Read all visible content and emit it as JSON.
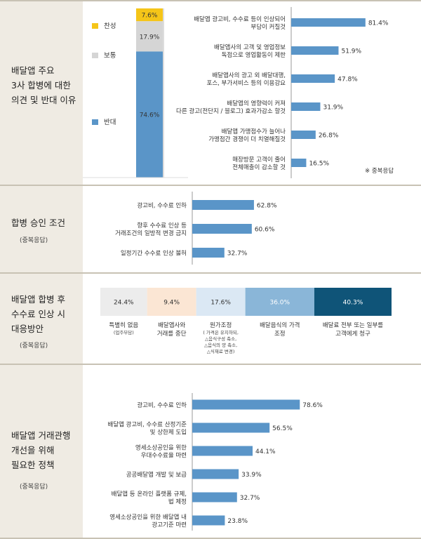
{
  "sections": [
    {
      "title_lines": [
        "배달앱 주요",
        "3사 합병에 대한",
        "의견 및 반대 이유"
      ],
      "sub": ""
    },
    {
      "title_lines": [
        "합병 승인 조건"
      ],
      "sub": "(중복응답)"
    },
    {
      "title_lines": [
        "배달앱 합병 후",
        "수수료 인상 시",
        "대응방안"
      ],
      "sub": "(중복응답)"
    },
    {
      "title_lines": [
        "배달앱 거래관행",
        "개선을 위해",
        "필요한 정책"
      ],
      "sub": "(중복응답)"
    }
  ],
  "colors": {
    "bar": "#5a95c8",
    "agree": "#f5c518",
    "neutral": "#d5d5d5",
    "oppose": "#5a95c8",
    "label_bg": "#efebe3",
    "border": "#c8c2b4"
  },
  "chart_data": [
    {
      "type": "bar",
      "subtype": "stacked-100",
      "series": [
        {
          "name": "찬성",
          "value": 7.6,
          "label": "7.6%",
          "color": "#f5c518"
        },
        {
          "name": "보통",
          "value": 17.9,
          "label": "17.9%",
          "color": "#d5d5d5"
        },
        {
          "name": "반대",
          "value": 74.6,
          "label": "74.6%",
          "color": "#5a95c8"
        }
      ]
    },
    {
      "type": "bar",
      "orientation": "horizontal",
      "note": "※ 중복응답",
      "categories": [
        [
          "배달앱 광고비, 수수료 등이 인상되어",
          "부담이 커질것"
        ],
        [
          "배달앱사의 고객 및 영업정보",
          "독점으로 영업활동이 제한"
        ],
        [
          "배달앱사의 광고 외 배달대행,",
          "포스, 부가서비스 등의 이용강요"
        ],
        [
          "배달앱의 영향력이 커져",
          "다른 광고(전단지 / 블로그) 효과가감소 할것"
        ],
        [
          "배달앱 가맹점수가 늘어나",
          "가맹점간 경쟁이 더 치열해질것"
        ],
        [
          "매장방문 고객이 줄어",
          "전체매출이 감소할 것"
        ]
      ],
      "values": [
        81.4,
        51.9,
        47.8,
        31.9,
        26.8,
        16.5
      ],
      "value_labels": [
        "81.4%",
        "51.9%",
        "47.8%",
        "31.9%",
        "26.8%",
        "16.5%"
      ]
    },
    {
      "type": "bar",
      "orientation": "horizontal",
      "categories": [
        [
          "광고비, 수수료 인하"
        ],
        [
          "향후 수수료 인상 등",
          "거래조건의 일방적 변경 금지"
        ],
        [
          "일정기간 수수료 인상 불허"
        ]
      ],
      "values": [
        62.8,
        60.6,
        32.7
      ],
      "value_labels": [
        "62.8%",
        "60.6%",
        "32.7%"
      ]
    },
    {
      "type": "bar",
      "subtype": "segmented",
      "segments": [
        {
          "value": 24.4,
          "label": "24.4%",
          "color": "#ececec",
          "text_color": "#333333",
          "caption": [
            "특별히 없음"
          ],
          "caption_sub": [
            "(업주부담)"
          ]
        },
        {
          "value": 9.4,
          "label": "9.4%",
          "color": "#fbe6d4",
          "text_color": "#333333",
          "caption": [
            "배달앱사와",
            "거래를 중단"
          ],
          "caption_sub": []
        },
        {
          "value": 17.6,
          "label": "17.6%",
          "color": "#dbe8f4",
          "text_color": "#333333",
          "caption": [
            "원가조정"
          ],
          "caption_sub": [
            "( 가격은 유지하되,",
            "△음식구성 축소,",
            "△음식의 양 축소,",
            "△식재료 변경)"
          ]
        },
        {
          "value": 36.0,
          "label": "36.0%",
          "color": "#8ab6d8",
          "text_color": "#ffffff",
          "caption": [
            "배달음식의 가격",
            "조정"
          ],
          "caption_sub": []
        },
        {
          "value": 40.3,
          "label": "40.3%",
          "color": "#0f5478",
          "text_color": "#ffffff",
          "caption": [
            "배달료 전부 또는 일부를",
            "고객에게 청구"
          ],
          "caption_sub": []
        }
      ]
    },
    {
      "type": "bar",
      "orientation": "horizontal",
      "categories": [
        [
          "광고비, 수수료 인하"
        ],
        [
          "배달앱 광고비, 수수료 산정기준",
          "및 상한제 도입"
        ],
        [
          "영세소상공인을 위한",
          "우대수수료율 마련"
        ],
        [
          "공공배달앱 개발 및 보급"
        ],
        [
          "배달앱 등 온라인 플랫폼 규제,",
          "법 제정"
        ],
        [
          "영세소상공인을 위한 배달앱 내",
          "광고기준 마련"
        ]
      ],
      "values": [
        78.6,
        56.5,
        44.1,
        33.9,
        32.7,
        23.8
      ],
      "value_labels": [
        "78.6%",
        "56.5%",
        "44.1%",
        "33.9%",
        "32.7%",
        "23.8%"
      ]
    }
  ]
}
